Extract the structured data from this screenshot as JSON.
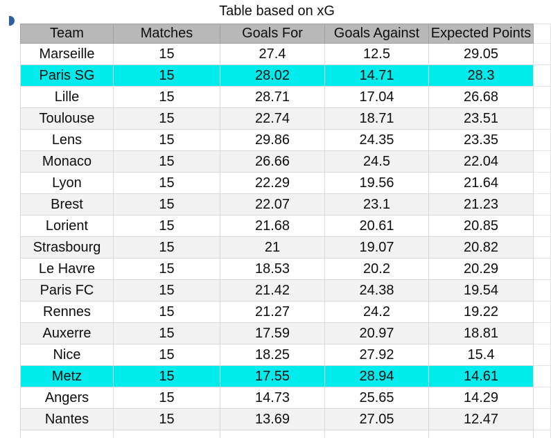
{
  "title": "Table based on xG",
  "colors": {
    "header_bg": "#b8b8b8",
    "highlight_bg": "#00ebeb",
    "alt_row_bg": "#f2f2f2",
    "grid_line": "#d9d9d9",
    "marker_blue": "#2d5fa8",
    "text": "#0d0d0d"
  },
  "chart_data": {
    "type": "table",
    "title": "Table based on xG",
    "columns": [
      "Team",
      "Matches",
      "Goals For",
      "Goals Against",
      "Expected Points"
    ],
    "rows": [
      {
        "cells": [
          "Marseille",
          "15",
          "27.4",
          "12.5",
          "29.05"
        ],
        "highlight": false
      },
      {
        "cells": [
          "Paris SG",
          "15",
          "28.02",
          "14.71",
          "28.3"
        ],
        "highlight": true
      },
      {
        "cells": [
          "Lille",
          "15",
          "28.71",
          "17.04",
          "26.68"
        ],
        "highlight": false
      },
      {
        "cells": [
          "Toulouse",
          "15",
          "22.74",
          "18.71",
          "23.51"
        ],
        "highlight": false
      },
      {
        "cells": [
          "Lens",
          "15",
          "29.86",
          "24.35",
          "23.35"
        ],
        "highlight": false
      },
      {
        "cells": [
          "Monaco",
          "15",
          "26.66",
          "24.5",
          "22.04"
        ],
        "highlight": false
      },
      {
        "cells": [
          "Lyon",
          "15",
          "22.29",
          "19.56",
          "21.64"
        ],
        "highlight": false
      },
      {
        "cells": [
          "Brest",
          "15",
          "22.07",
          "23.1",
          "21.23"
        ],
        "highlight": false
      },
      {
        "cells": [
          "Lorient",
          "15",
          "21.68",
          "20.61",
          "20.85"
        ],
        "highlight": false
      },
      {
        "cells": [
          "Strasbourg",
          "15",
          "21",
          "19.07",
          "20.82"
        ],
        "highlight": false
      },
      {
        "cells": [
          "Le Havre",
          "15",
          "18.53",
          "20.2",
          "20.29"
        ],
        "highlight": false
      },
      {
        "cells": [
          "Paris FC",
          "15",
          "21.42",
          "24.38",
          "19.54"
        ],
        "highlight": false
      },
      {
        "cells": [
          "Rennes",
          "15",
          "21.27",
          "24.2",
          "19.22"
        ],
        "highlight": false
      },
      {
        "cells": [
          "Auxerre",
          "15",
          "17.59",
          "20.97",
          "18.81"
        ],
        "highlight": false
      },
      {
        "cells": [
          "Nice",
          "15",
          "18.25",
          "27.92",
          "15.4"
        ],
        "highlight": false
      },
      {
        "cells": [
          "Metz",
          "15",
          "17.55",
          "28.94",
          "14.61"
        ],
        "highlight": true
      },
      {
        "cells": [
          "Angers",
          "15",
          "14.73",
          "25.65",
          "14.29"
        ],
        "highlight": false
      },
      {
        "cells": [
          "Nantes",
          "15",
          "13.69",
          "27.05",
          "12.47"
        ],
        "highlight": false
      }
    ],
    "highlighted_teams": [
      "Paris SG",
      "Metz"
    ],
    "legend": "none",
    "grid": true
  }
}
